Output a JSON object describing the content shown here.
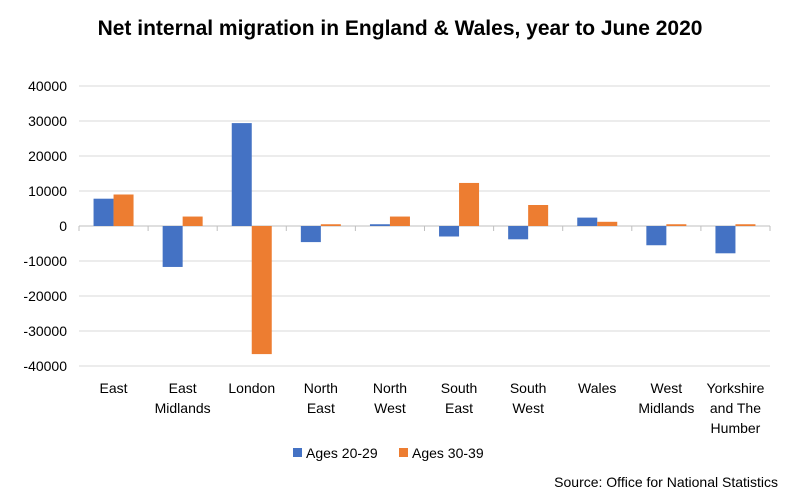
{
  "chart_data": {
    "type": "bar",
    "title": "Net internal migration in England & Wales, year to June 2020",
    "categories": [
      "East",
      "East Midlands",
      "London",
      "North East",
      "North West",
      "South East",
      "South West",
      "Wales",
      "West Midlands",
      "Yorkshire and The Humber"
    ],
    "category_lines": [
      [
        "East"
      ],
      [
        "East",
        "Midlands"
      ],
      [
        "London"
      ],
      [
        "North",
        "East"
      ],
      [
        "North",
        "West"
      ],
      [
        "South",
        "East"
      ],
      [
        "South",
        "West"
      ],
      [
        "Wales"
      ],
      [
        "West",
        "Midlands"
      ],
      [
        "Yorkshire",
        "and The",
        "Humber"
      ]
    ],
    "series": [
      {
        "name": "Ages 20-29",
        "color": "#4472C4",
        "values": [
          7800,
          -11700,
          29400,
          -4600,
          500,
          -3000,
          -3800,
          2400,
          -5500,
          -7800
        ]
      },
      {
        "name": "Ages 30-39",
        "color": "#ED7D31",
        "values": [
          9000,
          2700,
          -36600,
          500,
          2700,
          12300,
          6000,
          1200,
          500,
          500
        ]
      }
    ],
    "ylim": [
      -40000,
      40000
    ],
    "yticks": [
      -40000,
      -30000,
      -20000,
      -10000,
      0,
      10000,
      20000,
      30000,
      40000
    ],
    "grid": true,
    "legend": "bottom",
    "source": "Source: Office for National Statistics"
  }
}
